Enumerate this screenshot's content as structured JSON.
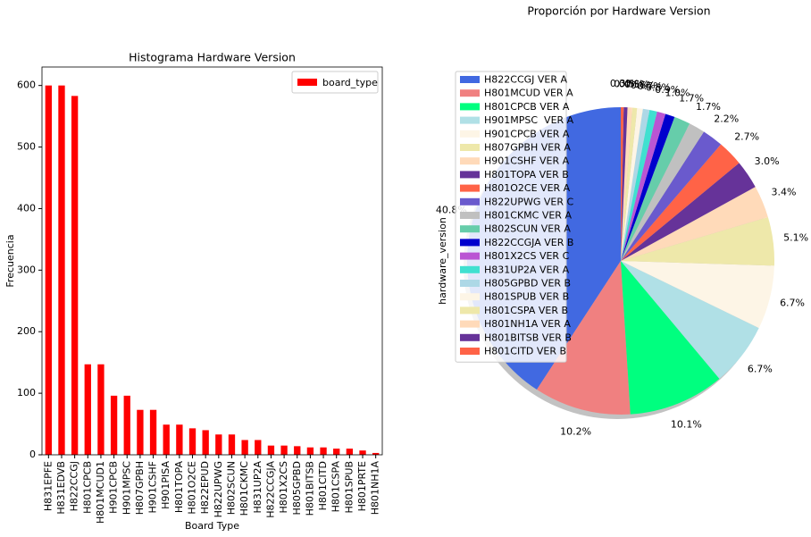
{
  "chart_data": [
    {
      "type": "bar",
      "title": "Histograma Hardware Version",
      "xlabel": "Board Type",
      "ylabel": "Frecuencia",
      "categories": [
        "H831EPFE",
        "H831EDVB",
        "H822CCGJ",
        "H801CPCB",
        "H801MCUD1",
        "H901CPCB",
        "H901MPSC",
        "H807GPBH",
        "H901CSHF",
        "H901PISA",
        "H801TOPA",
        "H801O2CE",
        "H822EPUD",
        "H822UPWG",
        "H802SCUN",
        "H801CKMC",
        "H831UP2A",
        "H822CCGJA",
        "H801X2CS",
        "H805GPBD",
        "H801BITSB",
        "H801CITD",
        "H801CSPA",
        "H801SPUB",
        "H801PRTE",
        "H801NH1A"
      ],
      "series": [
        {
          "name": "board_type",
          "color": "#ff0000",
          "values": [
            600,
            600,
            583,
            147,
            147,
            96,
            96,
            73,
            73,
            49,
            49,
            43,
            40,
            33,
            33,
            24,
            24,
            15,
            15,
            14,
            12,
            12,
            10,
            10,
            7,
            3
          ]
        }
      ],
      "ylim": [
        0,
        630
      ],
      "yticks": [
        0,
        100,
        200,
        300,
        400,
        500,
        600
      ],
      "legend": "upper right"
    },
    {
      "type": "pie",
      "title": "Proporción por Hardware Version",
      "ylabel": "hardware_version",
      "categories": [
        "H822CCGJ VER A",
        "H801MCUD VER A",
        "H801CPCB VER A",
        "H901MPSC  VER A",
        "H901CPCB VER A",
        "H807GPBH VER A",
        "H901CSHF VER A",
        "H801TOPA VER B",
        "H801O2CE VER A",
        "H822UPWG VER C",
        "H801CKMC VER A",
        "H802SCUN VER A",
        "H822CCGJA VER B",
        "H801X2CS VER C",
        "H831UP2A VER A",
        "H805GPBD VER B",
        "H801SPUB VER B",
        "H801CSPA VER B",
        "H801NH1A VER A",
        "H801BITSB VER B",
        "H801CITD VER B"
      ],
      "values": [
        40.8,
        10.2,
        10.1,
        6.7,
        6.7,
        5.1,
        3.4,
        3.0,
        2.7,
        2.2,
        1.7,
        1.7,
        1.0,
        0.9,
        0.8,
        0.7,
        0.6,
        0.5,
        0.5,
        0.4,
        0.3
      ],
      "value_labels": [
        "40.8%",
        "10.2%",
        "10.1%",
        "6.7%",
        "6.7%",
        "5.1%",
        "3.4%",
        "3.0%",
        "2.7%",
        "2.2%",
        "1.7%",
        "1.7%",
        "1.0%",
        "0.9%",
        "0.8%",
        "0.7%",
        "0.6%",
        "0.5%",
        "0.5%",
        "0.4%",
        "0.3%"
      ],
      "colors": [
        "#4169e1",
        "#f08080",
        "#00ff7f",
        "#b0e0e6",
        "#fdf5e6",
        "#eee8aa",
        "#ffdab9",
        "#663399",
        "#ff6347",
        "#6a5acd",
        "#c0c0c0",
        "#66cdaa",
        "#0000cd",
        "#ba55d3",
        "#40e0d0",
        "#add8e6",
        "#fdf5e6",
        "#eee8aa",
        "#ffdab9",
        "#663399",
        "#ff6347"
      ],
      "legend": "upper left",
      "shadow": true
    }
  ]
}
